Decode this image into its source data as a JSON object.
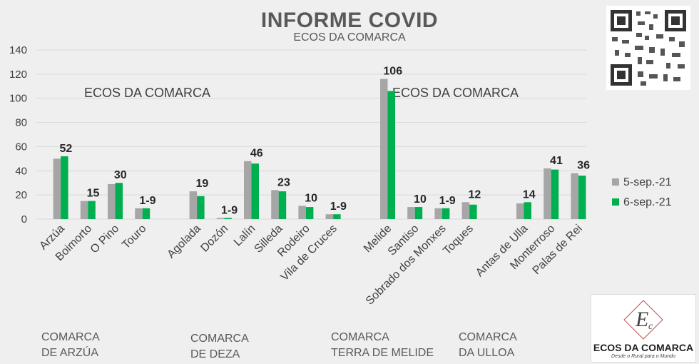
{
  "header": {
    "title": "INFORME COVID",
    "subtitle": "ECOS DA COMARCA"
  },
  "watermarks": [
    "ECOS DA COMARCA",
    "ECOS DA COMARCA"
  ],
  "groups": [
    {
      "line1": "COMARCA",
      "line2": "DE ARZÚA"
    },
    {
      "line1": "COMARCA",
      "line2": "DE DEZA"
    },
    {
      "line1": "COMARCA",
      "line2": "TERRA DE MELIDE"
    },
    {
      "line1": "COMARCA",
      "line2": "DA ULLOA"
    }
  ],
  "logo": {
    "text": "ECOS DA COMARCA",
    "tagline": "Desde o Rural para o Mundo"
  },
  "colors": {
    "series1": "#a6a6a6",
    "series2": "#00b050",
    "background": "#efefef",
    "grid": "#d9d9d9",
    "text": "#404040"
  },
  "chart_data": {
    "type": "bar",
    "title": "INFORME COVID",
    "subtitle": "ECOS DA COMARCA",
    "ylim": [
      0,
      140
    ],
    "yticks": [
      0,
      20,
      40,
      60,
      80,
      100,
      120,
      140
    ],
    "grid": true,
    "legend_position": "right",
    "categories": [
      "Arzúa",
      "Boimorto",
      "O Pino",
      "Touro",
      "",
      "Agolada",
      "Dozón",
      "Lalín",
      "Silleda",
      "Rodeiro",
      "Vila de Cruces",
      "",
      "Melide",
      "Santiso",
      "Sobrado dos Monxes",
      "Toques",
      "",
      "Antas de Ulla",
      "Monterroso",
      "Palas de Rei"
    ],
    "series": [
      {
        "name": "5-sep.-21",
        "color": "#a6a6a6",
        "values": [
          50,
          15,
          29,
          9,
          null,
          23,
          1,
          48,
          24,
          11,
          4,
          null,
          116,
          10,
          9,
          14,
          null,
          13,
          42,
          38
        ]
      },
      {
        "name": "6-sep.-21",
        "color": "#00b050",
        "values": [
          52,
          15,
          30,
          9,
          null,
          19,
          1,
          46,
          23,
          10,
          4,
          null,
          106,
          10,
          9,
          12,
          null,
          14,
          41,
          36
        ]
      }
    ],
    "data_labels": [
      "52",
      "15",
      "30",
      "1-9",
      "",
      "19",
      "1-9",
      "46",
      "23",
      "10",
      "1-9",
      "",
      "106",
      "10",
      "1-9",
      "12",
      "",
      "14",
      "41",
      "36"
    ]
  }
}
